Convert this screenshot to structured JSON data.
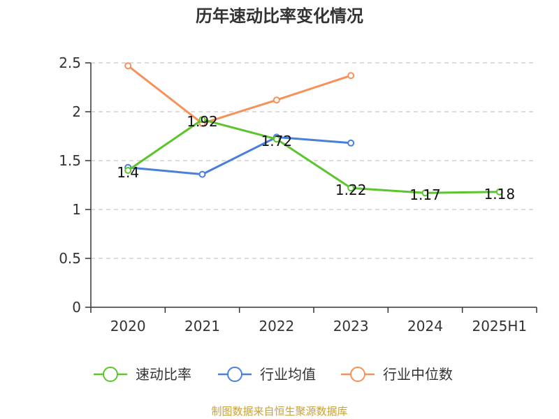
{
  "chart_data": {
    "type": "line",
    "title": "历年速动比率变化情况",
    "categories": [
      "2020",
      "2021",
      "2022",
      "2023",
      "2024",
      "2025H1"
    ],
    "ylim": [
      0,
      2.5
    ],
    "yticks": [
      "0",
      "0.5",
      "1",
      "1.5",
      "2",
      "2.5"
    ],
    "grid": true,
    "legend_position": "bottom",
    "series": [
      {
        "name": "速动比率",
        "color": "#5cc52e",
        "values": [
          1.4,
          1.92,
          1.72,
          1.22,
          1.17,
          1.18
        ],
        "labels": [
          "1.4",
          "1.92",
          "1.72",
          "1.22",
          "1.17",
          "1.18"
        ]
      },
      {
        "name": "行业均值",
        "color": "#4a7fdc",
        "values": [
          1.43,
          1.36,
          1.74,
          1.68,
          null,
          null
        ]
      },
      {
        "name": "行业中位数",
        "color": "#f6915a",
        "values": [
          2.47,
          1.88,
          2.12,
          2.37,
          null,
          null
        ]
      }
    ]
  },
  "footer": {
    "source": "制图数据来自恒生聚源数据库"
  }
}
